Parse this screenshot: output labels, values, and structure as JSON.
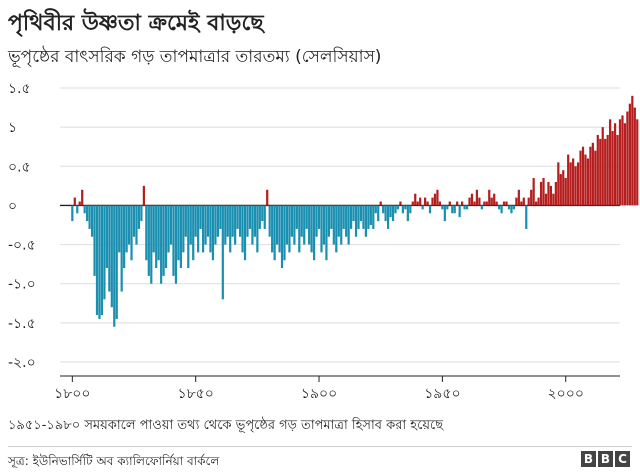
{
  "title": "পৃথিবীর উষ্ণতা ক্রমেই বাড়ছে",
  "subtitle": "ভূপৃষ্ঠের বাৎসরিক গড় তাপমাত্রার তারতম্য (সেলসিয়াস)",
  "note": "১৯৫১-১৯৮০ সময়কালে পাওয়া তথ্য থেকে ভূপৃষ্ঠের গড় তাপমাত্রা হিসাব করা হয়েছে",
  "source": "সূত্র: ইউনিভার্সিটি অব ক্যালিফোর্নিয়া বার্কলে",
  "logo": [
    "B",
    "B",
    "C"
  ],
  "colors": {
    "positive": "#b51e1e",
    "negative": "#1a8fb0",
    "grid": "#dddddd",
    "zero": "#222222"
  },
  "chart_data": {
    "type": "bar",
    "xlabel": "",
    "ylabel": "",
    "xlim": [
      1795,
      2022
    ],
    "ylim": [
      -2.0,
      1.5
    ],
    "grid": true,
    "y_ticks": [
      {
        "value": 1.5,
        "label": "১.৫"
      },
      {
        "value": 1.0,
        "label": "১"
      },
      {
        "value": 0.5,
        "label": "০.৫"
      },
      {
        "value": 0.0,
        "label": "০"
      },
      {
        "value": -0.5,
        "label": "-০.৫"
      },
      {
        "value": -1.0,
        "label": "-১.০"
      },
      {
        "value": -1.5,
        "label": "-১.৫"
      },
      {
        "value": -2.0,
        "label": "-২.০"
      }
    ],
    "x_ticks": [
      {
        "value": 1800,
        "label": "১৮০০"
      },
      {
        "value": 1850,
        "label": "১৮৫০"
      },
      {
        "value": 1900,
        "label": "১৯০০"
      },
      {
        "value": 1950,
        "label": "১৯৫০"
      },
      {
        "value": 2000,
        "label": "২০০০"
      }
    ],
    "start_year": 1800,
    "values": [
      -0.2,
      0.1,
      -0.1,
      0.05,
      0.2,
      -0.1,
      -0.2,
      -0.3,
      -0.4,
      -0.9,
      -1.4,
      -1.45,
      -1.4,
      -1.2,
      -0.8,
      -1.1,
      -1.3,
      -1.55,
      -1.45,
      -0.6,
      -1.1,
      -0.8,
      -0.6,
      -0.5,
      -0.7,
      -0.4,
      -0.5,
      -0.3,
      -0.2,
      0.25,
      -0.7,
      -0.9,
      -1.0,
      -0.6,
      -0.8,
      -0.7,
      -1.0,
      -0.9,
      -0.8,
      -0.6,
      -0.5,
      -0.9,
      -1.0,
      -0.7,
      -0.8,
      -0.6,
      -0.4,
      -0.8,
      -0.5,
      -0.7,
      -0.4,
      -0.6,
      -0.3,
      -0.6,
      -0.5,
      -0.4,
      -0.6,
      -0.7,
      -0.5,
      -0.4,
      -0.3,
      -1.2,
      -0.5,
      -0.4,
      -0.6,
      -0.4,
      -0.5,
      -0.3,
      -0.4,
      -0.6,
      -0.7,
      -0.4,
      -0.3,
      -0.5,
      -0.4,
      -0.6,
      -0.3,
      -0.2,
      -0.3,
      0.2,
      -0.4,
      -0.6,
      -0.7,
      -0.5,
      -0.6,
      -0.8,
      -0.7,
      -0.5,
      -0.6,
      -0.4,
      -0.5,
      -0.3,
      -0.6,
      -0.4,
      -0.5,
      -0.3,
      -0.5,
      -0.6,
      -0.7,
      -0.4,
      -0.3,
      -0.6,
      -0.5,
      -0.7,
      -0.4,
      -0.3,
      -0.5,
      -0.6,
      -0.4,
      -0.5,
      -0.3,
      -0.4,
      -0.5,
      -0.3,
      -0.2,
      -0.4,
      -0.3,
      -0.2,
      -0.3,
      -0.4,
      -0.3,
      -0.25,
      -0.3,
      -0.1,
      -0.2,
      0.05,
      -0.1,
      -0.2,
      -0.3,
      -0.15,
      -0.2,
      -0.1,
      -0.05,
      0.05,
      -0.1,
      -0.05,
      -0.2,
      -0.1,
      0.05,
      0.15,
      0.05,
      0.1,
      -0.05,
      0.1,
      0.05,
      -0.1,
      0.1,
      0.15,
      0.2,
      0.05,
      -0.05,
      -0.2,
      -0.05,
      0.05,
      -0.1,
      -0.1,
      0.05,
      -0.15,
      0.05,
      -0.05,
      -0.05,
      0.1,
      0.15,
      0.05,
      0.2,
      0.1,
      -0.05,
      0.05,
      0.05,
      0.2,
      0.1,
      0.15,
      0.05,
      -0.05,
      -0.1,
      0.05,
      0.05,
      -0.05,
      -0.1,
      -0.05,
      0.1,
      0.2,
      0.05,
      0.1,
      -0.3,
      0.1,
      0.2,
      0.35,
      0.05,
      0.1,
      0.3,
      0.35,
      0.15,
      0.3,
      0.25,
      0.15,
      0.3,
      0.55,
      0.4,
      0.45,
      0.35,
      0.65,
      0.55,
      0.6,
      0.5,
      0.55,
      0.7,
      0.75,
      0.65,
      0.6,
      0.75,
      0.8,
      0.7,
      0.9,
      0.85,
      1.0,
      0.85,
      0.9,
      1.1,
      0.95,
      1.05,
      0.9,
      1.1,
      1.15,
      1.05,
      1.2,
      1.3,
      1.4,
      1.25,
      1.1
    ]
  }
}
